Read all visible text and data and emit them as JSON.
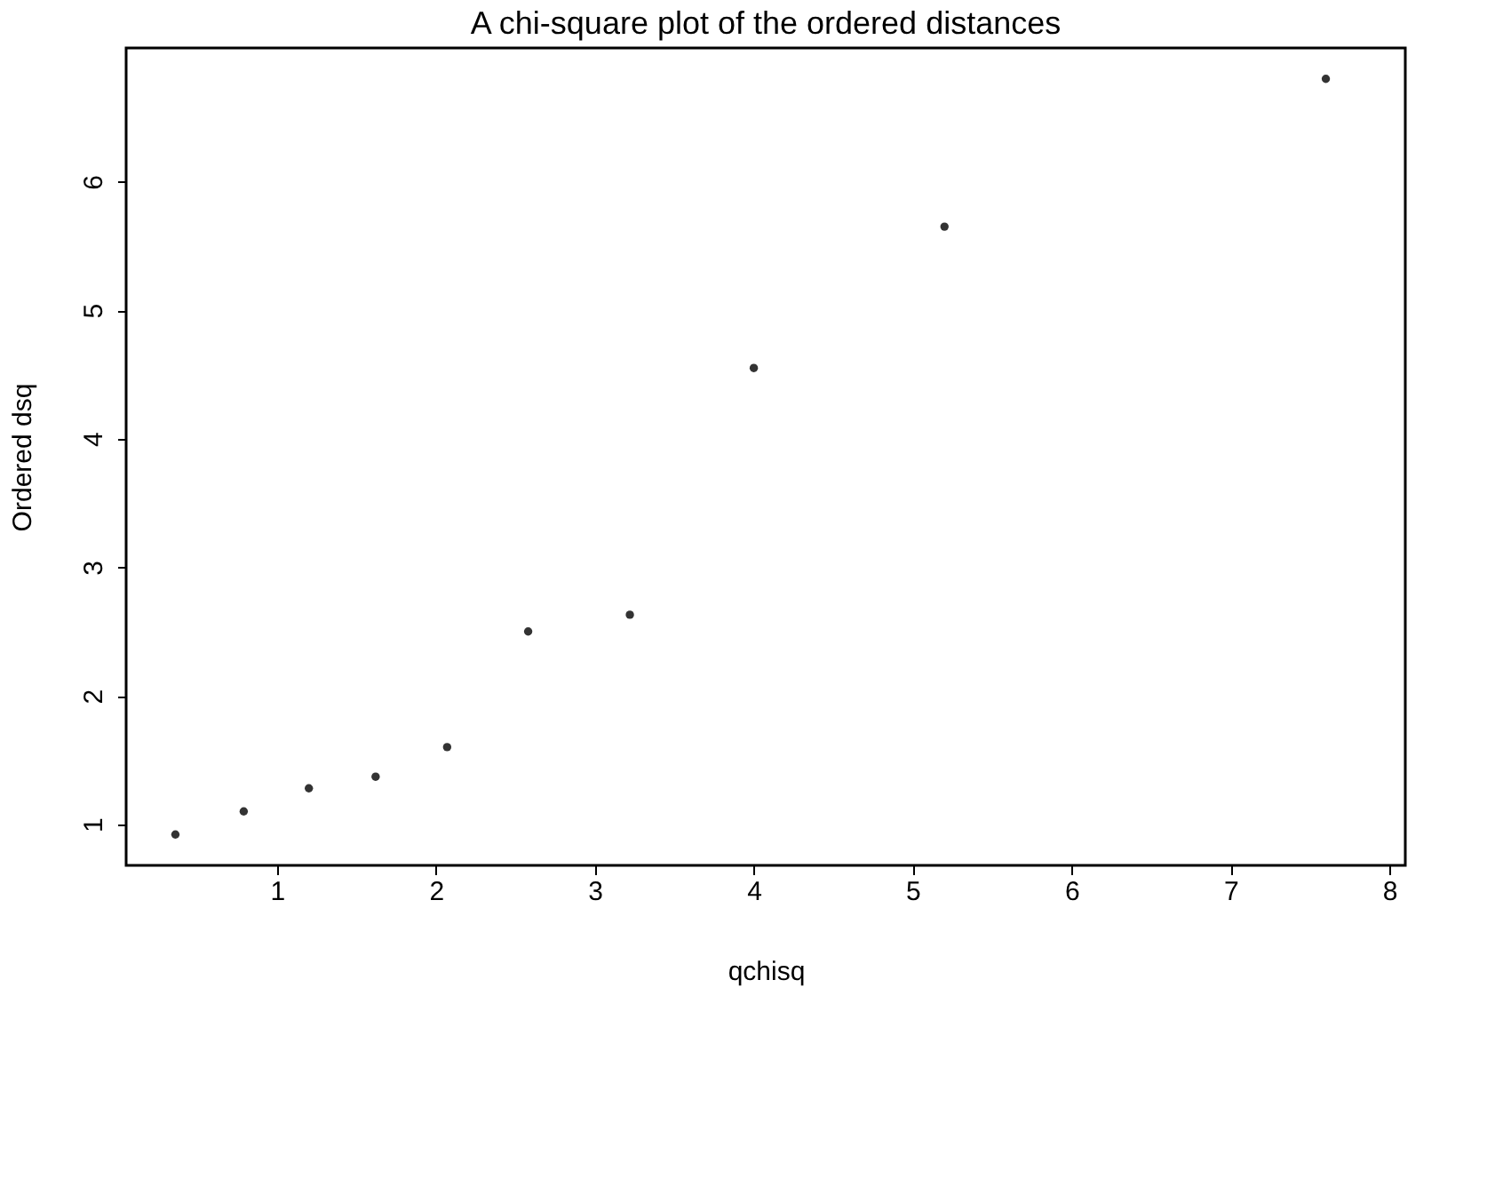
{
  "chart_data": {
    "type": "scatter",
    "title": "A chi-square plot of the ordered distances",
    "xlabel": "qchisq",
    "ylabel": "Ordered dsq",
    "x": [
      0.36,
      0.79,
      1.2,
      1.62,
      2.07,
      2.58,
      3.22,
      4.0,
      5.2,
      7.6
    ],
    "values": [
      0.92,
      1.1,
      1.28,
      1.37,
      1.6,
      2.5,
      2.63,
      4.55,
      5.65,
      6.8
    ],
    "color": "#333333",
    "marker": "circle",
    "xlim": [
      0.05,
      8.1
    ],
    "ylim": [
      0.68,
      7.04
    ],
    "xticks": [
      1,
      2,
      3,
      4,
      5,
      6,
      7,
      8
    ],
    "yticks": [
      1,
      2,
      3,
      4,
      5,
      6
    ]
  }
}
